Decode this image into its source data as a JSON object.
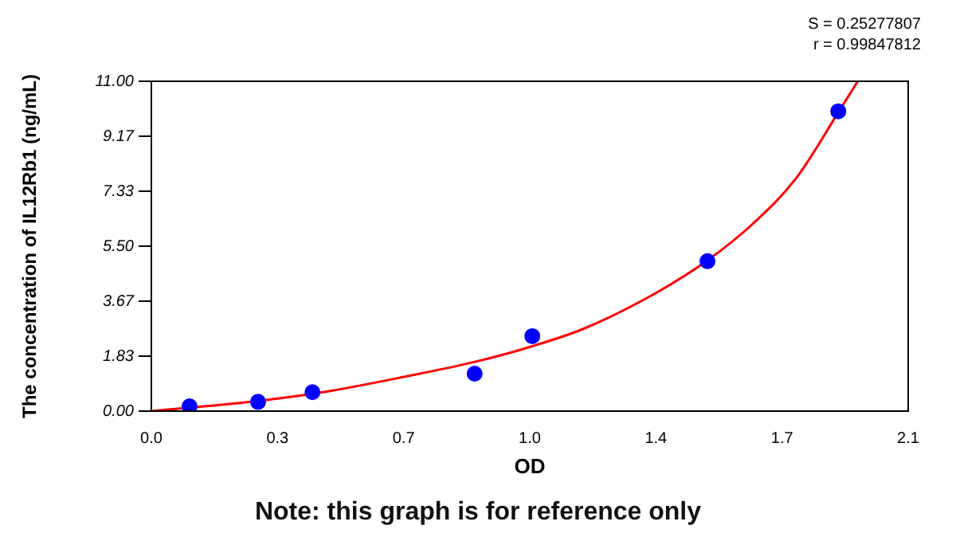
{
  "chart_data": {
    "type": "scatter",
    "xlabel": "OD",
    "ylabel": "The concentration of IL12Rb1 (ng/mL)",
    "annotations": [
      "S = 0.25277807",
      "r = 0.99847812",
      "Note: this graph is for reference only"
    ],
    "xlim": [
      0,
      2.1
    ],
    "xticks": [
      {
        "value": 0,
        "label": "0.0"
      },
      {
        "value": 0.35,
        "label": "0.3"
      },
      {
        "value": 0.7,
        "label": "0.7"
      },
      {
        "value": 1.05,
        "label": "1.0"
      },
      {
        "value": 1.4,
        "label": "1.4"
      },
      {
        "value": 1.75,
        "label": "1.7"
      },
      {
        "value": 2.1,
        "label": "2.1"
      }
    ],
    "ylim": [
      0,
      11
    ],
    "yticks": [
      {
        "value": 0,
        "label": "0.00"
      },
      {
        "value": 1.8333,
        "label": "1.83"
      },
      {
        "value": 3.6667,
        "label": "3.67"
      },
      {
        "value": 5.5,
        "label": "5.50"
      },
      {
        "value": 7.3333,
        "label": "7.33"
      },
      {
        "value": 9.1667,
        "label": "9.17"
      },
      {
        "value": 11,
        "label": "11.00"
      }
    ],
    "grid": false,
    "legend": false,
    "series": [
      {
        "type": "line",
        "color": "#ff0000",
        "marker": "none",
        "line_style": "solid",
        "x": [
          0,
          0.2,
          0.35,
          0.5,
          0.7,
          0.9,
          1.05,
          1.2,
          1.4,
          1.54,
          1.671,
          1.79,
          1.91,
          1.96
        ],
        "values": [
          0,
          0.22,
          0.42,
          0.68,
          1.14,
          1.65,
          2.14,
          2.75,
          3.94,
          5.0,
          6.27,
          7.78,
          10.04,
          11
        ]
      },
      {
        "type": "scatter",
        "color": "#0000ff",
        "marker": "circle",
        "x": [
          0.106,
          0.296,
          0.447,
          0.897,
          1.057,
          1.543,
          1.906
        ],
        "values": [
          0.16,
          0.31,
          0.63,
          1.25,
          2.5,
          5.0,
          10.0
        ]
      }
    ]
  }
}
